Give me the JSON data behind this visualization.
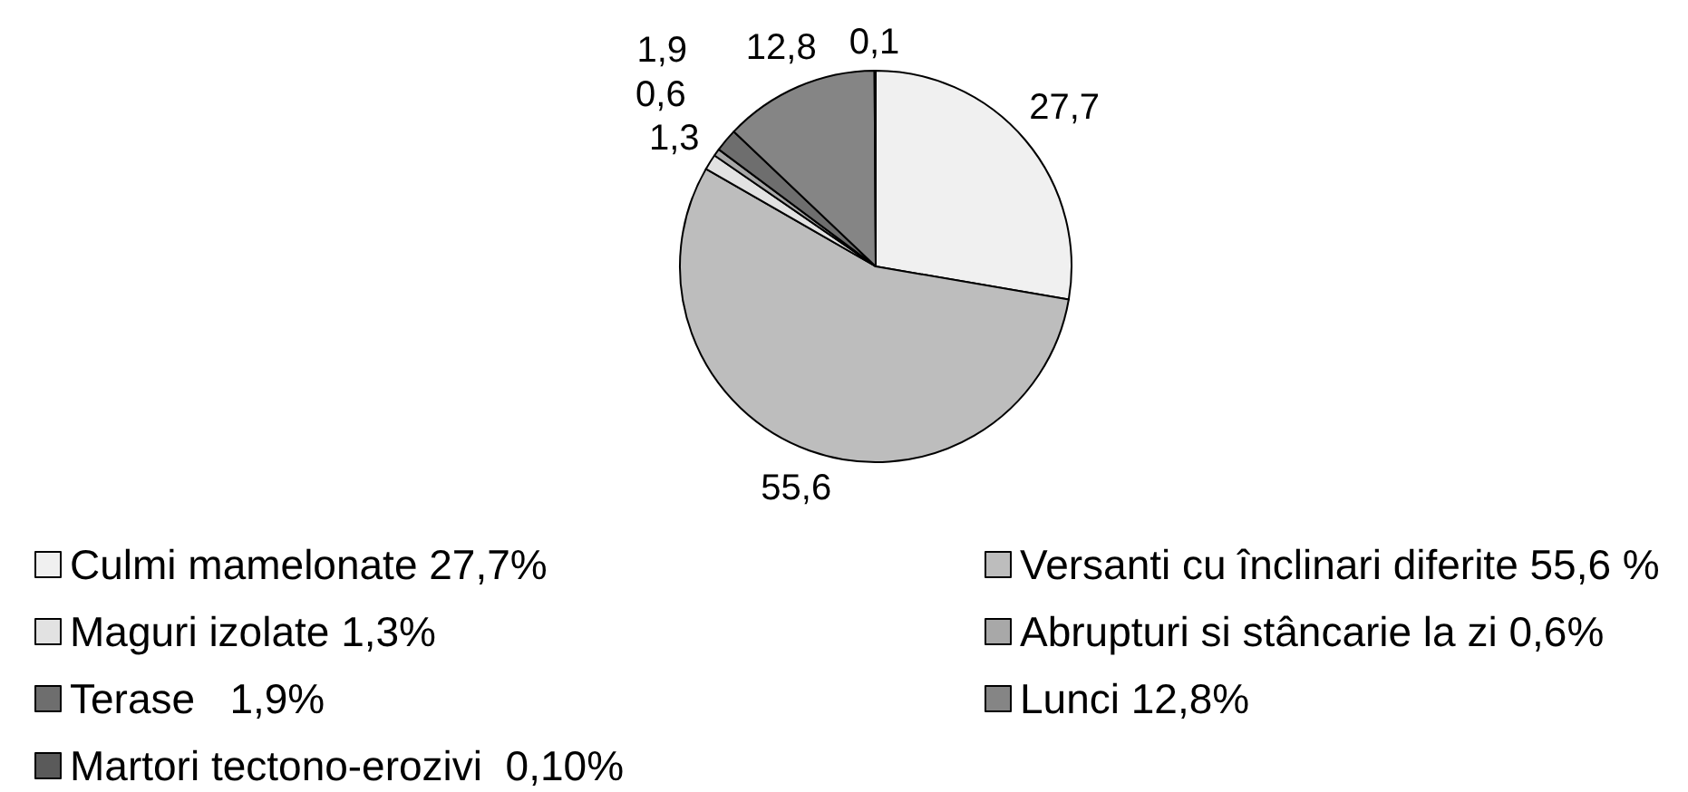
{
  "chart_data": {
    "type": "pie",
    "categories": [
      "Culmi mamelonate 27,7%",
      "Versanti cu înclinari diferite 55,6 %",
      "Maguri izolate 1,3%",
      "Abrupturi si stâncarie la zi 0,6%",
      "Terase   1,9%",
      "Lunci 12,8%",
      "Martori tectono-erozivi  0,10%"
    ],
    "values": [
      27.7,
      55.6,
      1.3,
      0.6,
      1.9,
      12.8,
      0.1
    ],
    "value_labels": [
      "27,7",
      "55,6",
      "1,3",
      "0,6",
      "1,9",
      "12,8",
      "0,1"
    ],
    "colors": [
      "#f0f0f0",
      "#bdbdbd",
      "#e2e2e2",
      "#a8a8a8",
      "#6e6e6e",
      "#858585",
      "#5a5a5a"
    ],
    "legend": "bottom"
  }
}
